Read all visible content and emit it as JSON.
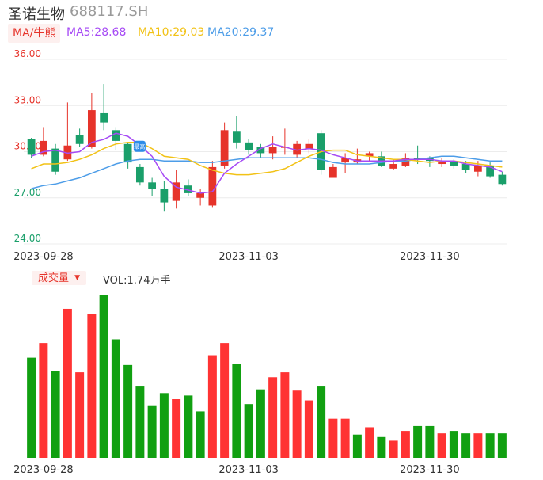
{
  "header": {
    "title": "圣诺生物",
    "code": "688117.SH"
  },
  "ma_legend": {
    "toggle_label": "MA/牛熊",
    "ma5": "MA5:28.68",
    "ma10": "MA10:29.03",
    "ma20": "MA20:29.37"
  },
  "volume_panel": {
    "toggle_label": "成交量",
    "toggle_icon": "caret-down-icon",
    "vol_text": "VOL:1.74万手"
  },
  "colors": {
    "up": "#e6332a",
    "down": "#1a9f6a",
    "vol_up": "#ff3333",
    "vol_down": "#11a011",
    "ma5": "#a64af5",
    "ma10": "#f2c216",
    "ma20": "#4d9de8",
    "grid": "#ececec",
    "axis_label_top": "#e6332a",
    "axis_label_bottom": "#1a9f6a"
  },
  "chart_data": [
    {
      "type": "candlestick",
      "y_ticks": [
        "36.00",
        "33.00",
        "30.00",
        "27.00",
        "24.00"
      ],
      "ylim": [
        24,
        36
      ],
      "x_ticks": [
        "2023-09-28",
        "2023-11-03",
        "2023-11-30"
      ],
      "x_tick_index": [
        1,
        18,
        33
      ],
      "grid": true,
      "candles": [
        {
          "o": 30.8,
          "c": 29.8,
          "h": 30.9,
          "l": 29.6
        },
        {
          "o": 29.8,
          "c": 30.7,
          "h": 31.6,
          "l": 29.7
        },
        {
          "o": 30.2,
          "c": 28.7,
          "h": 30.5,
          "l": 28.5
        },
        {
          "o": 29.5,
          "c": 30.4,
          "h": 33.2,
          "l": 29.4
        },
        {
          "o": 31.1,
          "c": 30.5,
          "h": 31.5,
          "l": 30.3
        },
        {
          "o": 30.3,
          "c": 32.7,
          "h": 33.8,
          "l": 30.2
        },
        {
          "o": 32.5,
          "c": 31.9,
          "h": 34.4,
          "l": 31.4
        },
        {
          "o": 31.4,
          "c": 30.7,
          "h": 31.6,
          "l": 30.1
        },
        {
          "o": 30.5,
          "c": 29.3,
          "h": 30.6,
          "l": 28.9
        },
        {
          "o": 29.0,
          "c": 28.0,
          "h": 29.2,
          "l": 27.8
        },
        {
          "o": 28.0,
          "c": 27.6,
          "h": 28.3,
          "l": 27.1
        },
        {
          "o": 27.6,
          "c": 26.7,
          "h": 28.1,
          "l": 26.1
        },
        {
          "o": 26.8,
          "c": 28.0,
          "h": 28.8,
          "l": 26.3
        },
        {
          "o": 27.8,
          "c": 27.3,
          "h": 28.2,
          "l": 27.1
        },
        {
          "o": 27.0,
          "c": 27.3,
          "h": 27.6,
          "l": 26.5
        },
        {
          "o": 26.5,
          "c": 29.0,
          "h": 29.4,
          "l": 26.4
        },
        {
          "o": 29.1,
          "c": 31.4,
          "h": 31.9,
          "l": 28.9
        },
        {
          "o": 31.3,
          "c": 30.6,
          "h": 32.3,
          "l": 30.2
        },
        {
          "o": 30.6,
          "c": 30.1,
          "h": 30.8,
          "l": 29.8
        },
        {
          "o": 30.3,
          "c": 29.9,
          "h": 30.5,
          "l": 29.6
        },
        {
          "o": 29.9,
          "c": 30.3,
          "h": 31.0,
          "l": 29.5
        },
        {
          "o": 30.3,
          "c": 30.3,
          "h": 31.5,
          "l": 29.8
        },
        {
          "o": 29.8,
          "c": 30.5,
          "h": 30.7,
          "l": 29.6
        },
        {
          "o": 30.2,
          "c": 30.5,
          "h": 30.8,
          "l": 29.9
        },
        {
          "o": 31.2,
          "c": 28.8,
          "h": 31.4,
          "l": 28.5
        },
        {
          "o": 28.3,
          "c": 29.0,
          "h": 29.2,
          "l": 28.3
        },
        {
          "o": 29.3,
          "c": 29.6,
          "h": 29.9,
          "l": 28.6
        },
        {
          "o": 29.3,
          "c": 29.5,
          "h": 30.2,
          "l": 29.2
        },
        {
          "o": 29.7,
          "c": 29.9,
          "h": 30.0,
          "l": 29.4
        },
        {
          "o": 29.7,
          "c": 29.1,
          "h": 30.0,
          "l": 29.0
        },
        {
          "o": 28.9,
          "c": 29.2,
          "h": 29.5,
          "l": 28.8
        },
        {
          "o": 29.1,
          "c": 29.6,
          "h": 29.9,
          "l": 29.0
        },
        {
          "o": 29.6,
          "c": 29.5,
          "h": 30.4,
          "l": 29.2
        },
        {
          "o": 29.6,
          "c": 29.4,
          "h": 29.7,
          "l": 29.0
        },
        {
          "o": 29.2,
          "c": 29.4,
          "h": 29.6,
          "l": 29.0
        },
        {
          "o": 29.4,
          "c": 29.1,
          "h": 29.5,
          "l": 28.9
        },
        {
          "o": 29.2,
          "c": 28.8,
          "h": 29.4,
          "l": 28.6
        },
        {
          "o": 28.7,
          "c": 29.1,
          "h": 29.4,
          "l": 28.4
        },
        {
          "o": 29.1,
          "c": 28.4,
          "h": 29.3,
          "l": 28.3
        },
        {
          "o": 28.5,
          "c": 27.9,
          "h": 28.7,
          "l": 27.8
        }
      ],
      "ma5": [
        29.7,
        30.0,
        30.1,
        29.9,
        30.0,
        30.6,
        30.8,
        31.2,
        31.0,
        30.4,
        29.7,
        28.4,
        27.7,
        27.5,
        27.3,
        27.4,
        28.6,
        29.2,
        29.7,
        30.2,
        30.5,
        30.3,
        30.1,
        30.2,
        30.1,
        29.8,
        29.6,
        29.4,
        29.4,
        29.4,
        29.4,
        29.5,
        29.5,
        29.5,
        29.4,
        29.4,
        29.2,
        29.1,
        29.0,
        28.7
      ],
      "ma10": [
        28.9,
        29.2,
        29.2,
        29.3,
        29.5,
        29.8,
        30.2,
        30.5,
        30.6,
        30.6,
        30.2,
        29.7,
        29.6,
        29.5,
        29.1,
        28.8,
        28.6,
        28.5,
        28.5,
        28.6,
        28.7,
        28.9,
        29.3,
        29.7,
        30.0,
        30.1,
        30.1,
        29.8,
        29.7,
        29.6,
        29.5,
        29.5,
        29.4,
        29.3,
        29.4,
        29.4,
        29.3,
        29.2,
        29.1,
        29.0
      ],
      "ma20": [
        27.6,
        27.8,
        27.9,
        28.1,
        28.3,
        28.6,
        28.9,
        29.2,
        29.4,
        29.5,
        29.5,
        29.4,
        29.4,
        29.4,
        29.3,
        29.3,
        29.4,
        29.5,
        29.6,
        29.6,
        29.6,
        29.6,
        29.6,
        29.6,
        29.5,
        29.3,
        29.2,
        29.2,
        29.2,
        29.3,
        29.4,
        29.4,
        29.5,
        29.6,
        29.7,
        29.7,
        29.6,
        29.5,
        29.4,
        29.4
      ],
      "annotation": "最高"
    },
    {
      "type": "bar",
      "x_ticks": [
        "2023-09-28",
        "2023-11-03",
        "2023-11-30"
      ],
      "x_tick_index": [
        1,
        18,
        33
      ],
      "values": [
        4.1,
        4.7,
        3.55,
        6.1,
        3.5,
        5.9,
        6.65,
        4.85,
        3.8,
        2.95,
        2.15,
        2.65,
        2.4,
        2.55,
        1.9,
        4.2,
        4.7,
        3.85,
        2.2,
        2.8,
        3.3,
        3.5,
        2.75,
        2.35,
        2.95,
        1.6,
        1.6,
        0.95,
        1.25,
        0.85,
        0.7,
        1.1,
        1.3,
        1.3,
        1.0,
        1.1,
        1.0,
        1.0,
        1.0,
        1.0
      ],
      "up": [
        false,
        true,
        false,
        true,
        true,
        true,
        false,
        false,
        false,
        false,
        false,
        false,
        true,
        false,
        false,
        true,
        true,
        false,
        false,
        false,
        true,
        true,
        true,
        true,
        false,
        true,
        true,
        false,
        true,
        false,
        true,
        true,
        false,
        false,
        true,
        false,
        false,
        true,
        false,
        false
      ]
    }
  ]
}
